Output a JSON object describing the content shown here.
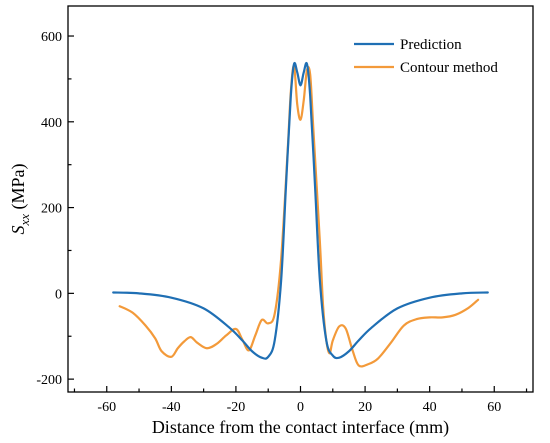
{
  "chart_data": {
    "type": "line",
    "title": "",
    "xlabel": "Distance from the contact interface (mm)",
    "ylabel": {
      "main": "S",
      "sub": "xx",
      "unit": " (MPa)"
    },
    "xlim": [
      -72,
      72
    ],
    "ylim": [
      -230,
      670
    ],
    "xticks": [
      -60,
      -40,
      -20,
      0,
      20,
      40,
      60
    ],
    "yticks": [
      -200,
      0,
      200,
      400,
      600
    ],
    "legend_position": "top-right",
    "grid": false,
    "series": [
      {
        "name": "Prediction",
        "color": "#1f6fb4",
        "points": [
          [
            -58,
            2
          ],
          [
            -50,
            0
          ],
          [
            -40,
            -10
          ],
          [
            -30,
            -35
          ],
          [
            -22,
            -80
          ],
          [
            -18,
            -110
          ],
          [
            -15,
            -135
          ],
          [
            -12,
            -150
          ],
          [
            -10,
            -148
          ],
          [
            -8,
            -110
          ],
          [
            -6,
            30
          ],
          [
            -4.5,
            250
          ],
          [
            -3,
            460
          ],
          [
            -2,
            535
          ],
          [
            -1,
            515
          ],
          [
            0,
            485
          ],
          [
            1,
            515
          ],
          [
            2,
            535
          ],
          [
            3,
            460
          ],
          [
            4.5,
            250
          ],
          [
            6,
            30
          ],
          [
            8,
            -110
          ],
          [
            10,
            -145
          ],
          [
            12,
            -150
          ],
          [
            15,
            -135
          ],
          [
            18,
            -110
          ],
          [
            22,
            -80
          ],
          [
            30,
            -35
          ],
          [
            40,
            -10
          ],
          [
            50,
            0
          ],
          [
            58,
            2
          ]
        ]
      },
      {
        "name": "Contour method",
        "color": "#f39a3a",
        "points": [
          [
            -56,
            -30
          ],
          [
            -52,
            -45
          ],
          [
            -48,
            -75
          ],
          [
            -45,
            -105
          ],
          [
            -43,
            -135
          ],
          [
            -40,
            -148
          ],
          [
            -38,
            -128
          ],
          [
            -36,
            -112
          ],
          [
            -34,
            -102
          ],
          [
            -32,
            -115
          ],
          [
            -29,
            -128
          ],
          [
            -26,
            -118
          ],
          [
            -23,
            -98
          ],
          [
            -20,
            -83
          ],
          [
            -18,
            -108
          ],
          [
            -16,
            -133
          ],
          [
            -14,
            -98
          ],
          [
            -12,
            -62
          ],
          [
            -10,
            -70
          ],
          [
            -8,
            -48
          ],
          [
            -6,
            80
          ],
          [
            -4,
            330
          ],
          [
            -3,
            470
          ],
          [
            -2,
            530
          ],
          [
            -1,
            440
          ],
          [
            0,
            405
          ],
          [
            1,
            450
          ],
          [
            2,
            520
          ],
          [
            3,
            510
          ],
          [
            4,
            380
          ],
          [
            6,
            120
          ],
          [
            7,
            -30
          ],
          [
            8,
            -110
          ],
          [
            9,
            -140
          ],
          [
            10,
            -110
          ],
          [
            12,
            -77
          ],
          [
            14,
            -82
          ],
          [
            16,
            -130
          ],
          [
            18,
            -168
          ],
          [
            21,
            -165
          ],
          [
            24,
            -152
          ],
          [
            28,
            -115
          ],
          [
            32,
            -75
          ],
          [
            36,
            -60
          ],
          [
            40,
            -56
          ],
          [
            44,
            -56
          ],
          [
            48,
            -50
          ],
          [
            52,
            -34
          ],
          [
            55,
            -15
          ]
        ]
      }
    ]
  }
}
